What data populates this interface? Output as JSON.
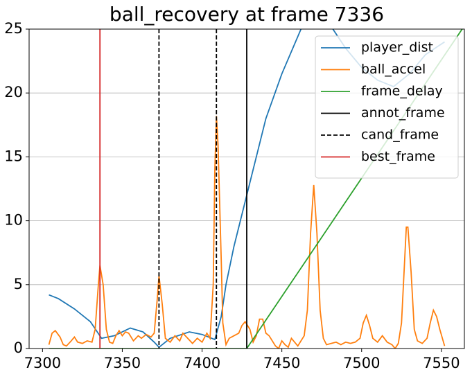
{
  "chart_data": {
    "type": "line",
    "title": "ball_recovery at frame 7336",
    "xlim": [
      7291.6,
      7564.4
    ],
    "xticks": [
      7300,
      7350,
      7400,
      7450,
      7500,
      7550
    ],
    "ylim": [
      0,
      25
    ],
    "yticks": [
      0,
      5,
      10,
      15,
      20,
      25
    ],
    "grid": "y",
    "legend": "upper right",
    "series": [
      {
        "name": "player_dist",
        "color": "#1f77b4",
        "x": [
          7304,
          7310,
          7320,
          7330,
          7337,
          7345,
          7355,
          7363,
          7370,
          7373,
          7380,
          7392,
          7400,
          7408,
          7412,
          7415,
          7420,
          7428,
          7435,
          7440,
          7450,
          7462,
          7472,
          7482,
          7490,
          7500,
          7510,
          7520,
          7530,
          7540,
          7552
        ],
        "values": [
          4.2,
          3.9,
          3.1,
          2.1,
          0.8,
          1.0,
          1.6,
          1.3,
          0.5,
          0.1,
          0.8,
          1.3,
          1.1,
          0.7,
          2.5,
          5.0,
          8.0,
          12.0,
          15.5,
          18.0,
          21.5,
          25.0,
          27.0,
          25.0,
          23.5,
          22.0,
          21.0,
          20.5,
          21.5,
          23.0,
          24.0
        ]
      },
      {
        "name": "ball_accel",
        "color": "#ff7f0e",
        "x": [
          7304,
          7306,
          7308,
          7311,
          7313,
          7315,
          7318,
          7320,
          7322,
          7325,
          7328,
          7331,
          7333,
          7335,
          7336,
          7338,
          7340,
          7342,
          7344,
          7346,
          7348,
          7350,
          7352,
          7354,
          7357,
          7360,
          7362,
          7365,
          7368,
          7370,
          7372,
          7373,
          7375,
          7377,
          7380,
          7383,
          7386,
          7388,
          7391,
          7394,
          7397,
          7400,
          7403,
          7405,
          7407,
          7408,
          7409,
          7410,
          7412,
          7413,
          7415,
          7417,
          7420,
          7423,
          7425,
          7427,
          7430,
          7432,
          7434,
          7436,
          7438,
          7440,
          7442,
          7444,
          7446,
          7448,
          7450,
          7452,
          7454,
          7456,
          7458,
          7460,
          7462,
          7464,
          7466,
          7468,
          7470,
          7472,
          7474,
          7476,
          7478,
          7481,
          7484,
          7487,
          7490,
          7493,
          7496,
          7499,
          7501,
          7503,
          7505,
          7507,
          7510,
          7513,
          7516,
          7519,
          7521,
          7523,
          7525,
          7527,
          7528,
          7529,
          7531,
          7533,
          7535,
          7538,
          7541,
          7543,
          7545,
          7547,
          7549,
          7552
        ],
        "values": [
          0.3,
          1.2,
          1.4,
          0.9,
          0.3,
          0.2,
          0.6,
          0.9,
          0.5,
          0.4,
          0.6,
          0.5,
          1.5,
          5.0,
          6.5,
          5.0,
          1.5,
          0.5,
          0.4,
          1.0,
          1.4,
          1.0,
          1.3,
          1.2,
          0.6,
          1.0,
          0.8,
          1.1,
          0.9,
          1.2,
          4.0,
          5.7,
          3.5,
          0.8,
          0.5,
          1.0,
          0.6,
          1.2,
          0.8,
          0.4,
          0.8,
          0.5,
          1.2,
          0.8,
          5.0,
          14.0,
          18.2,
          16.0,
          7.0,
          2.0,
          0.3,
          0.8,
          1.0,
          1.2,
          1.8,
          2.1,
          1.5,
          0.5,
          1.0,
          2.3,
          2.3,
          1.2,
          1.0,
          0.6,
          0.2,
          0.0,
          0.6,
          0.3,
          0.1,
          0.8,
          0.5,
          0.2,
          0.6,
          1.0,
          3.0,
          9.0,
          12.8,
          9.0,
          3.0,
          0.8,
          0.3,
          0.4,
          0.5,
          0.3,
          0.5,
          0.4,
          0.5,
          0.8,
          2.0,
          2.6,
          1.8,
          0.8,
          0.5,
          1.0,
          0.5,
          0.3,
          0.0,
          0.4,
          2.0,
          7.0,
          9.5,
          9.5,
          6.0,
          1.5,
          0.6,
          0.4,
          0.8,
          2.0,
          3.0,
          2.5,
          1.5,
          0.2
        ]
      },
      {
        "name": "frame_delay",
        "color": "#2ca02c",
        "x": [
          7304,
          7428,
          7563
        ],
        "values": [
          0,
          0,
          25
        ]
      }
    ],
    "vlines": [
      {
        "name": "annot_frame",
        "color": "#000000",
        "dash": false,
        "x": [
          7428
        ]
      },
      {
        "name": "cand_frame",
        "color": "#000000",
        "dash": true,
        "x": [
          7373,
          7409
        ]
      },
      {
        "name": "best_frame",
        "color": "#d62728",
        "dash": false,
        "x": [
          7336
        ]
      }
    ]
  }
}
